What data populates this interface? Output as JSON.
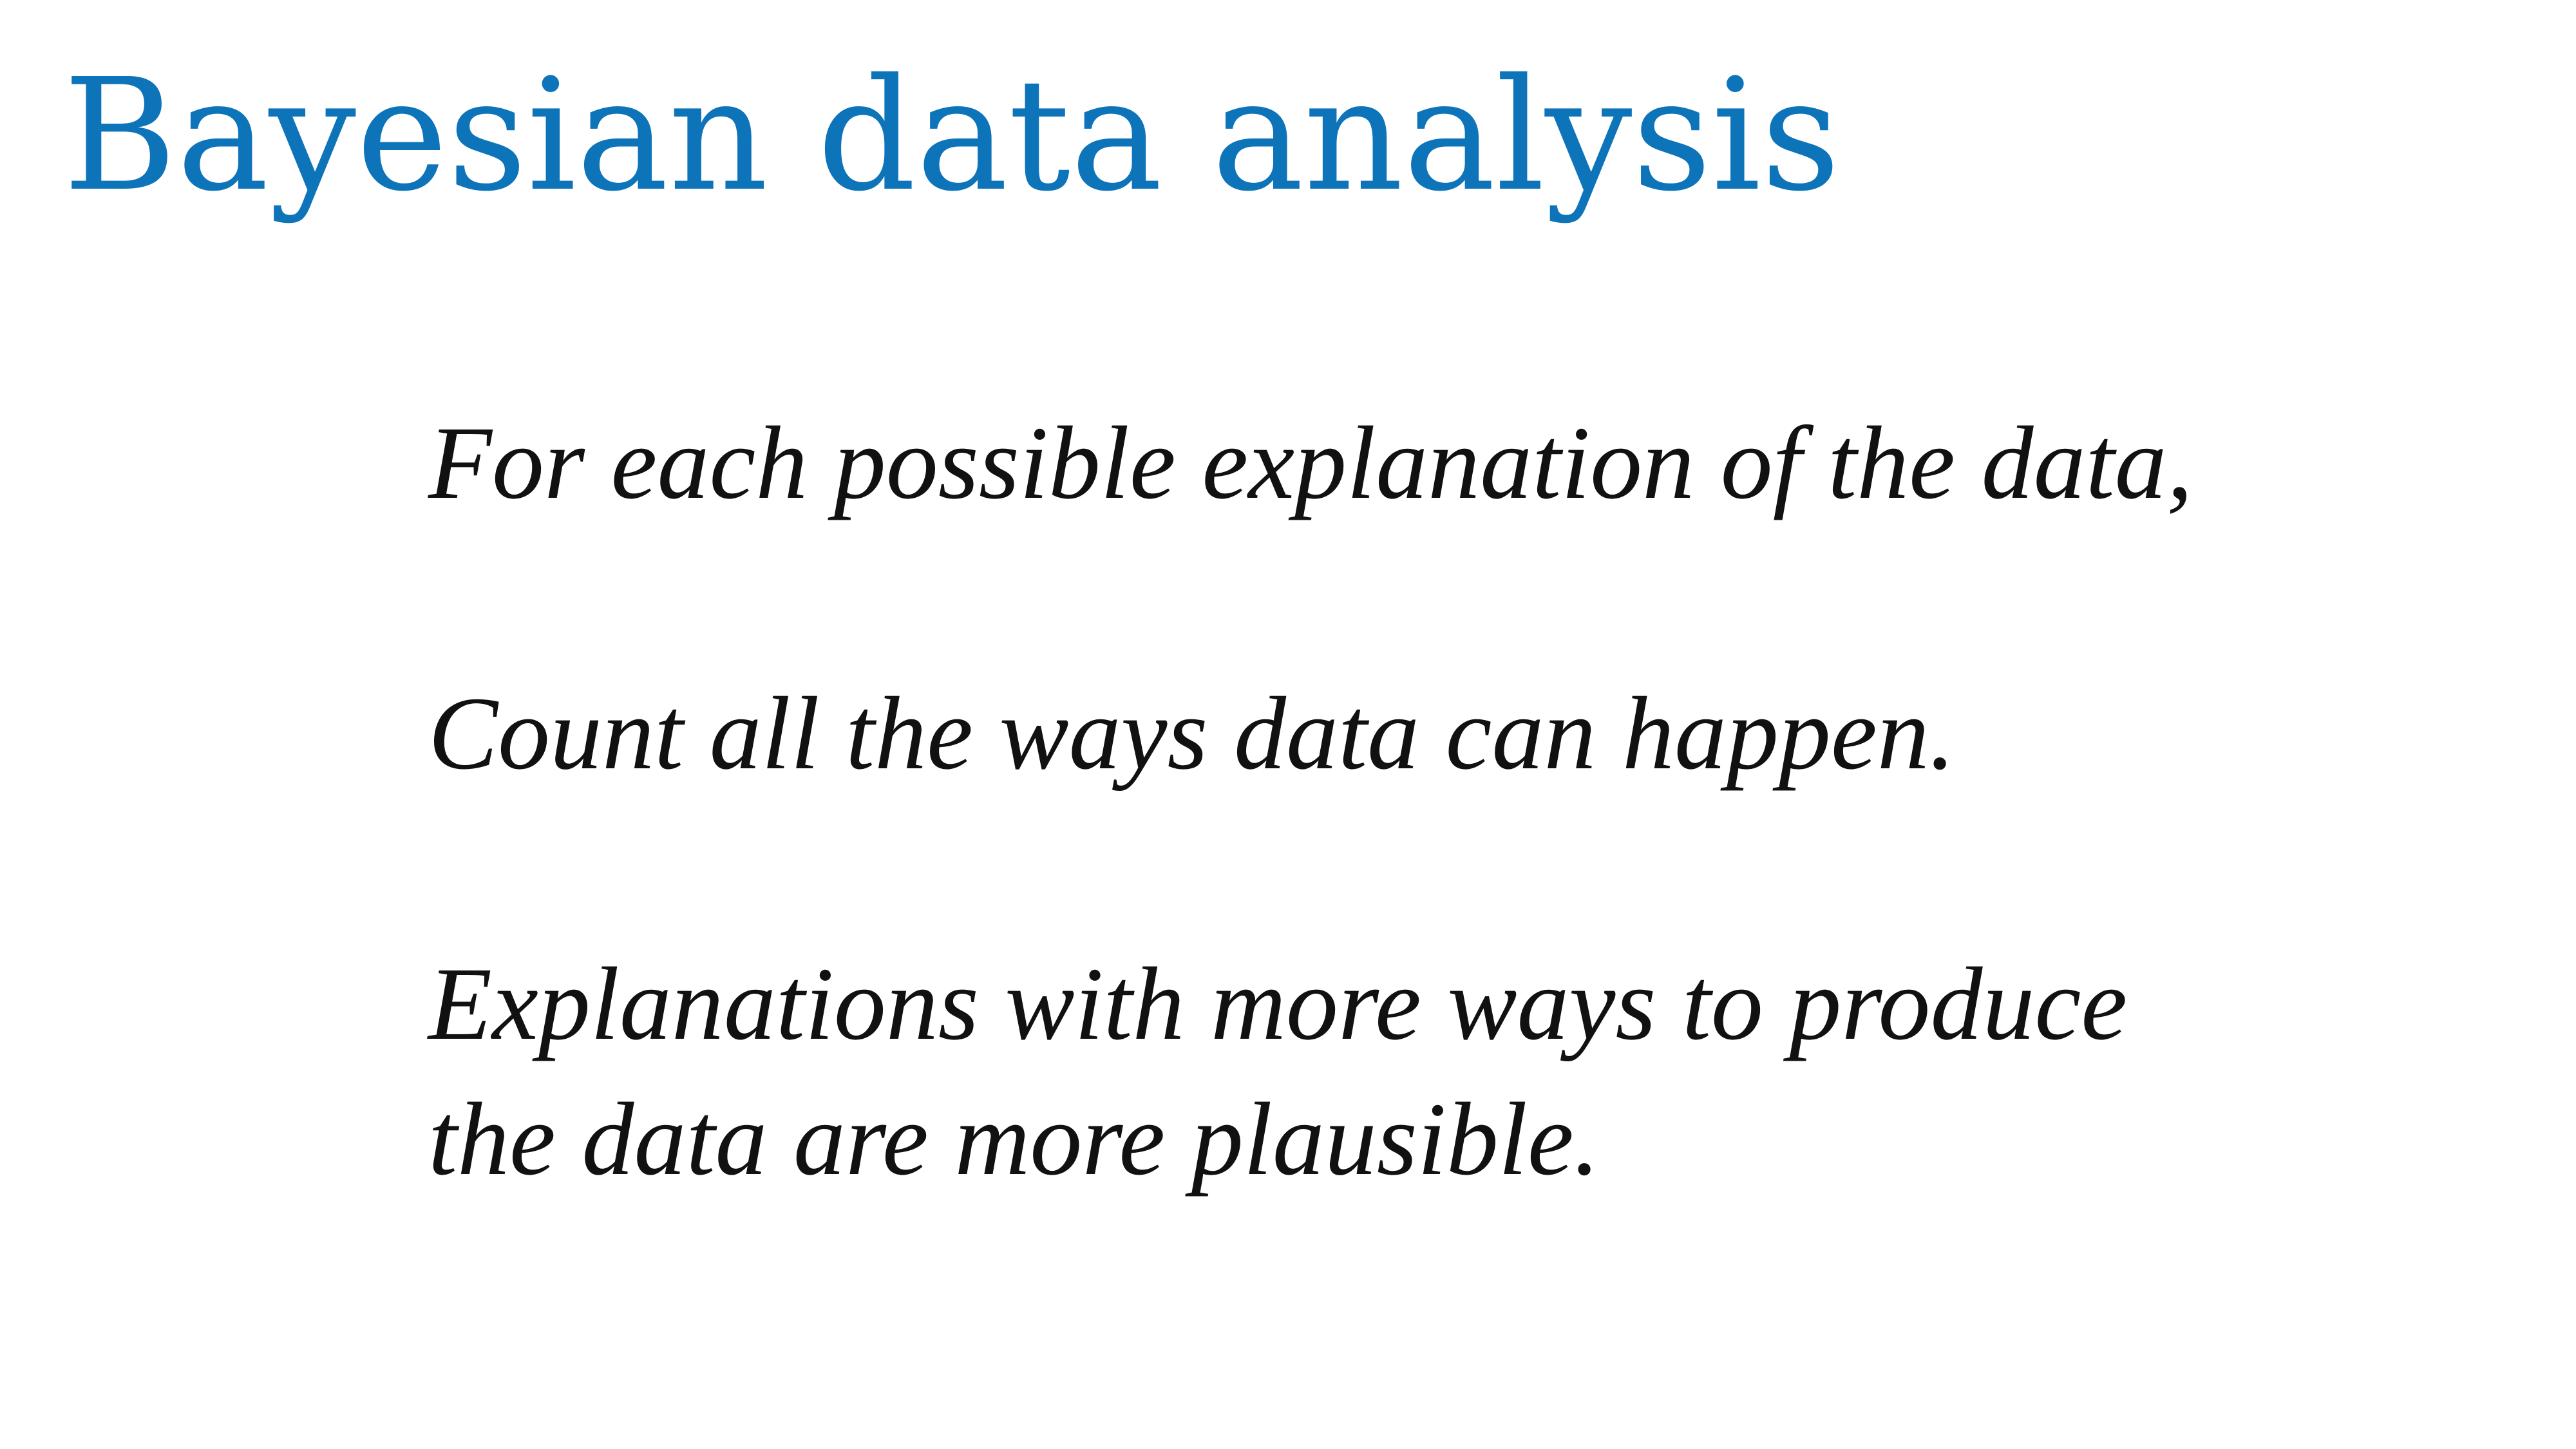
{
  "slide": {
    "title": "Bayesian data analysis",
    "title_color": "#0e74ba",
    "lines": [
      "For each possible explanation of the data,",
      "Count all the ways data can happen.",
      "Explanations with more ways to produce",
      "the data are more plausible."
    ]
  }
}
